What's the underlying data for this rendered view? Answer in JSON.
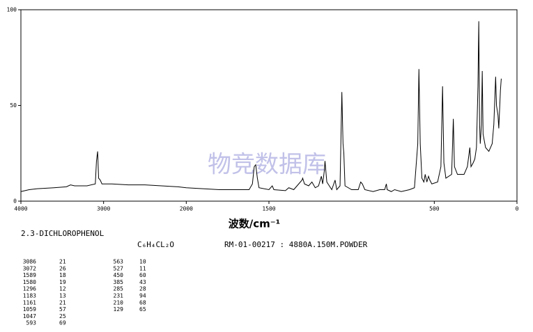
{
  "chart_data": {
    "type": "line",
    "xlabel": "波数/cm⁻¹",
    "watermark": "物竞数据库",
    "xlim": [
      4000,
      0
    ],
    "xticks": [
      4000,
      3000,
      2000,
      1500,
      500,
      0
    ],
    "ylim": [
      0,
      100
    ],
    "yticks": [
      0,
      50,
      100
    ],
    "color": "#000000",
    "x": [
      4000,
      3900,
      3800,
      3600,
      3450,
      3400,
      3350,
      3200,
      3100,
      3086,
      3072,
      3060,
      3040,
      3020,
      2900,
      2700,
      2500,
      2300,
      2100,
      2000,
      1900,
      1800,
      1700,
      1620,
      1600,
      1589,
      1580,
      1570,
      1560,
      1500,
      1480,
      1470,
      1400,
      1380,
      1350,
      1320,
      1300,
      1296,
      1285,
      1260,
      1240,
      1220,
      1200,
      1183,
      1175,
      1165,
      1161,
      1150,
      1120,
      1100,
      1090,
      1070,
      1059,
      1052,
      1047,
      1040,
      1000,
      960,
      945,
      935,
      920,
      870,
      830,
      800,
      790,
      785,
      760,
      740,
      700,
      650,
      620,
      600,
      593,
      585,
      575,
      563,
      555,
      545,
      535,
      527,
      515,
      480,
      460,
      450,
      442,
      430,
      395,
      385,
      378,
      360,
      320,
      300,
      285,
      278,
      265,
      255,
      245,
      236,
      231,
      226,
      222,
      215,
      210,
      205,
      190,
      170,
      150,
      140,
      129,
      124,
      115,
      110,
      100,
      95
    ],
    "values": [
      5,
      6,
      6.5,
      7,
      7.5,
      8.5,
      8,
      8,
      9,
      21,
      26,
      12,
      11,
      9,
      9,
      8.5,
      8.5,
      8,
      7.5,
      7,
      6.5,
      6,
      6,
      6,
      9,
      18,
      19,
      12,
      7,
      6,
      8,
      6,
      5.5,
      7,
      6,
      9,
      11,
      12,
      9,
      8,
      10,
      7,
      8,
      13,
      9,
      16,
      21,
      10,
      6,
      11,
      6,
      8,
      57,
      30,
      25,
      8,
      6,
      6,
      10,
      9,
      6,
      5,
      6,
      6,
      9,
      6,
      5,
      6,
      5,
      6,
      7,
      30,
      69,
      30,
      12,
      10,
      14,
      10,
      13,
      11,
      9,
      10,
      18,
      60,
      20,
      12,
      14,
      43,
      18,
      14,
      14,
      18,
      28,
      18,
      20,
      22,
      28,
      60,
      94,
      40,
      30,
      40,
      68,
      35,
      28,
      26,
      30,
      40,
      65,
      50,
      45,
      38,
      58,
      64
    ]
  },
  "compound": "2.3-DICHLOROPHENOL",
  "formula": "C₆H₄CL₂O",
  "record": "RM-01-00217 : 4880A.150M.POWDER",
  "peaks": {
    "wavenumbers": [
      3086,
      3072,
      1589,
      1580,
      1296,
      1183,
      1161,
      1059,
      1047,
      593,
      563,
      527,
      450,
      385,
      285,
      231,
      210,
      129
    ],
    "intensities": [
      21,
      26,
      18,
      19,
      12,
      13,
      21,
      57,
      25,
      69,
      10,
      11,
      60,
      43,
      28,
      94,
      68,
      65
    ]
  }
}
